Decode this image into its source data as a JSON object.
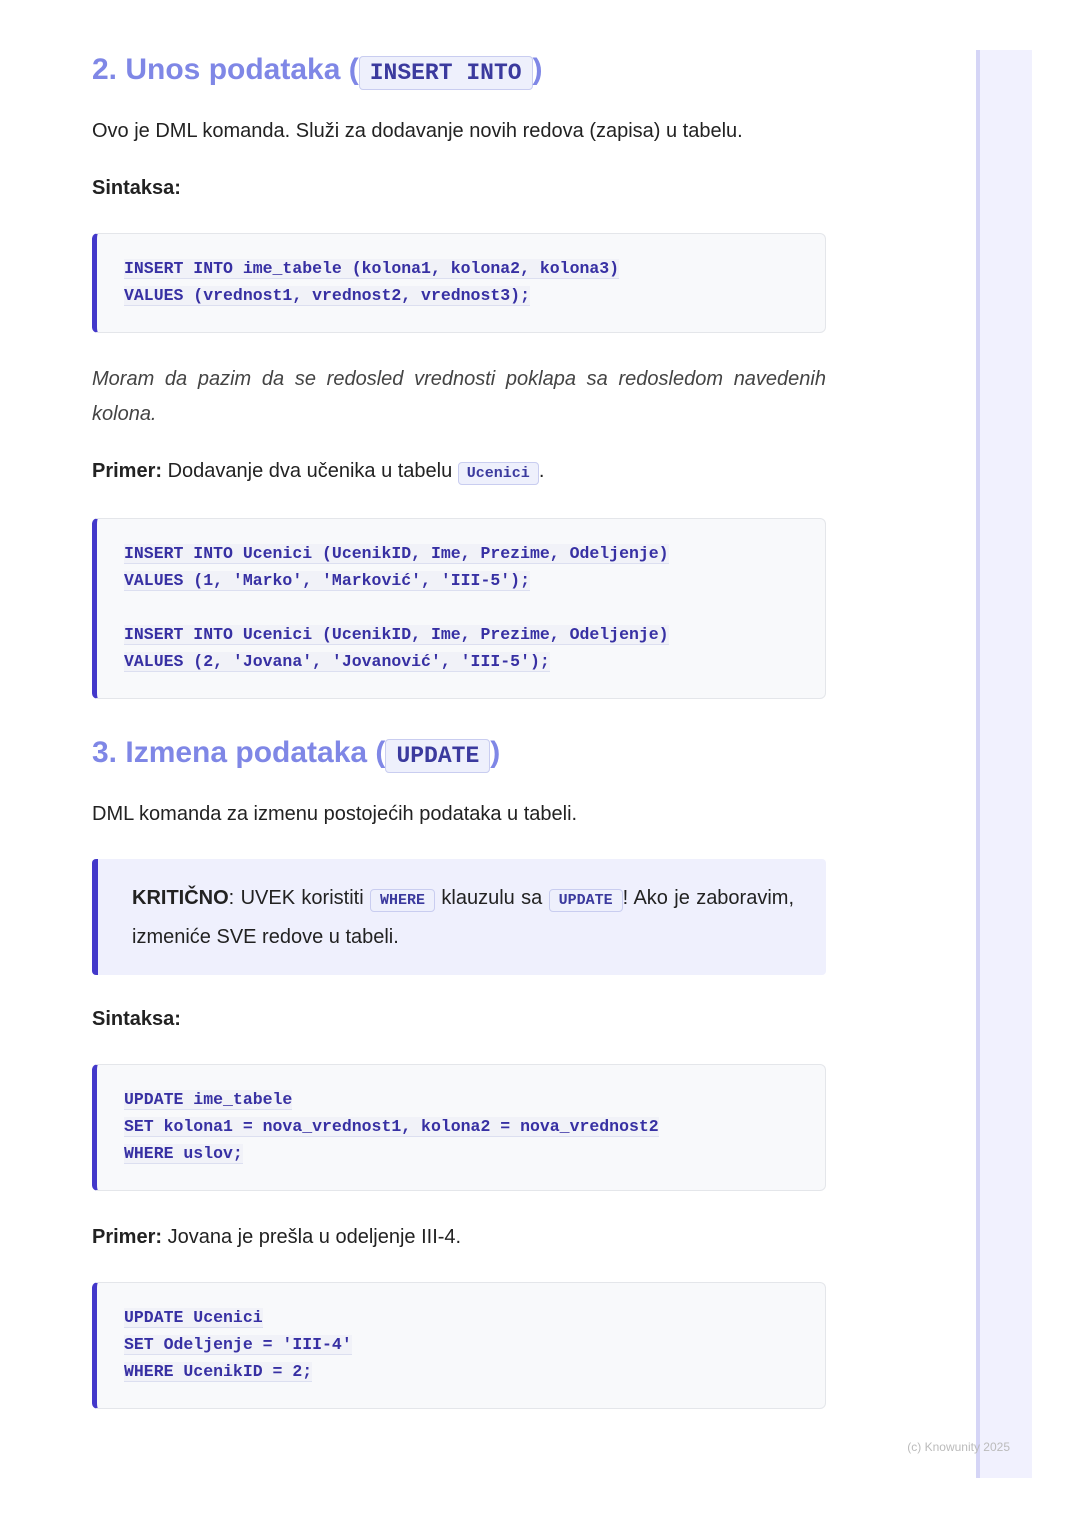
{
  "blocks": [
    {
      "type": "heading",
      "parts": [
        {
          "text": "2. Unos podataka ("
        },
        {
          "code": "INSERT INTO"
        },
        {
          "text": ")"
        }
      ]
    },
    {
      "type": "paragraph",
      "parts": [
        {
          "text": "Ovo je DML komanda. Služi za dodavanje novih redova (zapisa) u tabelu."
        }
      ]
    },
    {
      "type": "paragraph",
      "parts": [
        {
          "bold": "Sintaksa:"
        }
      ]
    },
    {
      "type": "code",
      "groups": [
        [
          "INSERT INTO ime_tabele (kolona1, kolona2, kolona3)",
          "VALUES (vrednost1, vrednost2, vrednost3);"
        ]
      ]
    },
    {
      "type": "note",
      "parts": [
        {
          "text": "Moram da pazim da se redosled vrednosti poklapa sa redosledom navedenih kolona."
        }
      ]
    },
    {
      "type": "paragraph",
      "parts": [
        {
          "bold": "Primer:"
        },
        {
          "text": " Dodavanje dva učenika u tabelu "
        },
        {
          "code": "Ucenici"
        },
        {
          "text": "."
        }
      ]
    },
    {
      "type": "code",
      "groups": [
        [
          "INSERT INTO Ucenici (UcenikID, Ime, Prezime, Odeljenje)",
          "VALUES (1, 'Marko', 'Marković', 'III-5');"
        ],
        [
          "INSERT INTO Ucenici (UcenikID, Ime, Prezime, Odeljenje)",
          "VALUES (2, 'Jovana', 'Jovanović', 'III-5');"
        ]
      ]
    },
    {
      "type": "heading",
      "parts": [
        {
          "text": "3. Izmena podataka ("
        },
        {
          "code": "UPDATE"
        },
        {
          "text": ")"
        }
      ]
    },
    {
      "type": "paragraph",
      "parts": [
        {
          "text": "DML komanda za izmenu postojećih podataka u tabeli."
        }
      ]
    },
    {
      "type": "callout",
      "parts": [
        {
          "bold": "KRITIČNO"
        },
        {
          "text": ": UVEK koristiti "
        },
        {
          "code": "WHERE"
        },
        {
          "text": " klauzulu sa "
        },
        {
          "code": "UPDATE"
        },
        {
          "text": "! Ako je zaboravim, izmeniće SVE redove u tabeli."
        }
      ]
    },
    {
      "type": "paragraph",
      "parts": [
        {
          "bold": "Sintaksa:"
        }
      ]
    },
    {
      "type": "code",
      "groups": [
        [
          "UPDATE ime_tabele",
          "SET kolona1 = nova_vrednost1, kolona2 = nova_vrednost2",
          "WHERE uslov;"
        ]
      ]
    },
    {
      "type": "paragraph",
      "parts": [
        {
          "bold": "Primer:"
        },
        {
          "text": " Jovana je prešla u odeljenje III-4."
        }
      ]
    },
    {
      "type": "code",
      "groups": [
        [
          "UPDATE Ucenici",
          "SET Odeljenje = 'III-4'",
          "WHERE UcenikID = 2;"
        ]
      ]
    }
  ],
  "footer": "(c) Knowunity 2025"
}
